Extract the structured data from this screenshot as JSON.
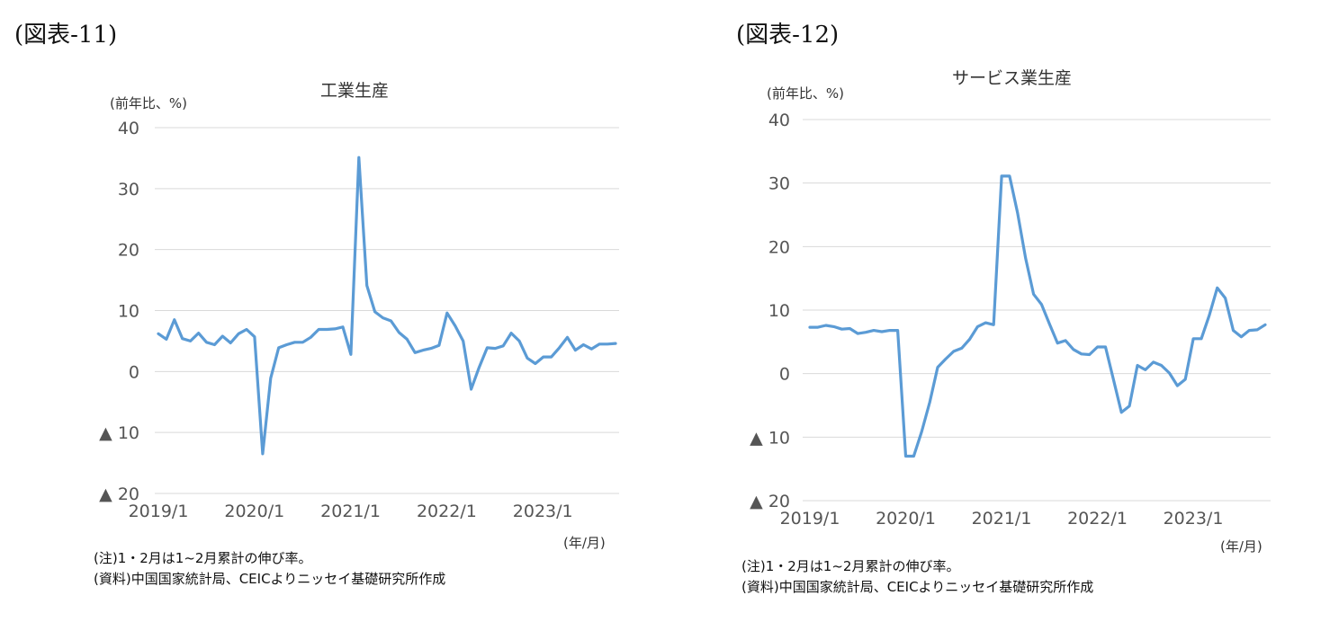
{
  "chart_data": [
    {
      "type": "line",
      "figure_label": "(図表-11)",
      "title": "工業生産",
      "ylabel": "(前年比、%)",
      "xlabel": "(年/月)",
      "ylim": [
        -20,
        40
      ],
      "yticks": [
        40,
        30,
        20,
        10,
        0,
        -10,
        -20
      ],
      "ytick_labels": [
        "40",
        "30",
        "20",
        "10",
        "0",
        "▲ 10",
        "▲ 20"
      ],
      "xtick_labels": [
        "2019/1",
        "2020/1",
        "2021/1",
        "2022/1",
        "2023/1"
      ],
      "grid": true,
      "series": [
        {
          "color": "#5b9bd5",
          "x": [
            "2019/1",
            "2019/2",
            "2019/3",
            "2019/4",
            "2019/5",
            "2019/6",
            "2019/7",
            "2019/8",
            "2019/9",
            "2019/10",
            "2019/11",
            "2019/12",
            "2020/1",
            "2020/2",
            "2020/3",
            "2020/4",
            "2020/5",
            "2020/6",
            "2020/7",
            "2020/8",
            "2020/9",
            "2020/10",
            "2020/11",
            "2020/12",
            "2021/1",
            "2021/2",
            "2021/3",
            "2021/4",
            "2021/5",
            "2021/6",
            "2021/7",
            "2021/8",
            "2021/9",
            "2021/10",
            "2021/11",
            "2021/12",
            "2022/1",
            "2022/2",
            "2022/3",
            "2022/4",
            "2022/5",
            "2022/6",
            "2022/7",
            "2022/8",
            "2022/9",
            "2022/10",
            "2022/11",
            "2022/12",
            "2023/1",
            "2023/2",
            "2023/3",
            "2023/4",
            "2023/5",
            "2023/6",
            "2023/7",
            "2023/8",
            "2023/9",
            "2023/10"
          ],
          "values": [
            6.2,
            5.3,
            8.5,
            5.4,
            5.0,
            6.3,
            4.8,
            4.4,
            5.8,
            4.7,
            6.2,
            6.9,
            5.7,
            -13.5,
            -1.1,
            3.9,
            4.4,
            4.8,
            4.8,
            5.6,
            6.9,
            6.9,
            7.0,
            7.3,
            2.8,
            35.1,
            14.1,
            9.8,
            8.8,
            8.3,
            6.4,
            5.3,
            3.1,
            3.5,
            3.8,
            4.3,
            9.6,
            7.5,
            5.0,
            -2.9,
            0.7,
            3.9,
            3.8,
            4.2,
            6.3,
            5.0,
            2.2,
            1.3,
            2.4,
            2.4,
            3.9,
            5.6,
            3.5,
            4.4,
            3.7,
            4.5,
            4.5,
            4.6
          ]
        }
      ]
    },
    {
      "type": "line",
      "figure_label": "(図表-12)",
      "title": "サービス業生産",
      "ylabel": "(前年比、%)",
      "xlabel": "(年/月)",
      "ylim": [
        -20,
        40
      ],
      "yticks": [
        40,
        30,
        20,
        10,
        0,
        -10,
        -20
      ],
      "ytick_labels": [
        "40",
        "30",
        "20",
        "10",
        "0",
        "▲ 10",
        "▲ 20"
      ],
      "xtick_labels": [
        "2019/1",
        "2020/1",
        "2021/1",
        "2022/1",
        "2023/1"
      ],
      "grid": true,
      "series": [
        {
          "color": "#5b9bd5",
          "x": [
            "2019/1",
            "2019/2",
            "2019/3",
            "2019/4",
            "2019/5",
            "2019/6",
            "2019/7",
            "2019/8",
            "2019/9",
            "2019/10",
            "2019/11",
            "2019/12",
            "2020/1",
            "2020/2",
            "2020/3",
            "2020/4",
            "2020/5",
            "2020/6",
            "2020/7",
            "2020/8",
            "2020/9",
            "2020/10",
            "2020/11",
            "2020/12",
            "2021/1",
            "2021/2",
            "2021/3",
            "2021/4",
            "2021/5",
            "2021/6",
            "2021/7",
            "2021/8",
            "2021/9",
            "2021/10",
            "2021/11",
            "2021/12",
            "2022/1",
            "2022/2",
            "2022/3",
            "2022/4",
            "2022/5",
            "2022/6",
            "2022/7",
            "2022/8",
            "2022/9",
            "2022/10",
            "2022/11",
            "2022/12",
            "2023/1",
            "2023/2",
            "2023/3",
            "2023/4",
            "2023/5",
            "2023/6",
            "2023/7",
            "2023/8",
            "2023/9",
            "2023/10"
          ],
          "values": [
            7.3,
            7.3,
            7.6,
            7.4,
            7.0,
            7.1,
            6.3,
            6.5,
            6.8,
            6.6,
            6.8,
            6.8,
            -13.0,
            -13.0,
            -9.1,
            -4.5,
            1.0,
            2.3,
            3.5,
            4.0,
            5.4,
            7.4,
            8.0,
            7.7,
            31.1,
            31.1,
            25.3,
            18.2,
            12.5,
            10.9,
            7.8,
            4.8,
            5.2,
            3.8,
            3.1,
            3.0,
            4.2,
            4.2,
            -0.9,
            -6.1,
            -5.1,
            1.3,
            0.6,
            1.8,
            1.3,
            0.1,
            -1.9,
            -0.9,
            5.5,
            5.5,
            9.2,
            13.5,
            11.9,
            6.8,
            5.8,
            6.8,
            6.9,
            7.7
          ]
        }
      ]
    }
  ],
  "notes": [
    {
      "note_line": "(注)1・2月は1~2月累計の伸び率。",
      "source_line": "(資料)中国国家統計局、CEICよりニッセイ基礎研究所作成"
    },
    {
      "note_line": "(注)1・2月は1~2月累計の伸び率。",
      "source_line": "(資料)中国国家統計局、CEICよりニッセイ基礎研究所作成"
    }
  ]
}
